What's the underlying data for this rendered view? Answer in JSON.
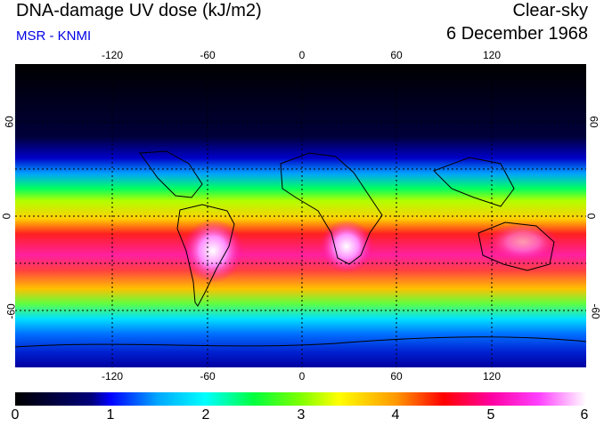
{
  "header": {
    "title": "DNA-damage UV dose (kJ/m2)",
    "source": "MSR - KNMI",
    "condition": "Clear-sky",
    "date": "6 December 1968"
  },
  "map": {
    "lon_ticks": [
      "-120",
      "-60",
      "0",
      "60",
      "120"
    ],
    "lat_ticks": [
      "60",
      "0",
      "-60"
    ]
  },
  "colorbar": {
    "labels": [
      "0",
      "1",
      "2",
      "3",
      "4",
      "5",
      "6"
    ],
    "stops": [
      {
        "v": 0,
        "c": "#000000"
      },
      {
        "v": 0.8,
        "c": "#00007a"
      },
      {
        "v": 1.0,
        "c": "#0000ff"
      },
      {
        "v": 1.5,
        "c": "#00a8ff"
      },
      {
        "v": 2.0,
        "c": "#00ffff"
      },
      {
        "v": 2.5,
        "c": "#00ff40"
      },
      {
        "v": 3.0,
        "c": "#7fff00"
      },
      {
        "v": 3.4,
        "c": "#ffff00"
      },
      {
        "v": 4.0,
        "c": "#ff9900"
      },
      {
        "v": 4.5,
        "c": "#ff0000"
      },
      {
        "v": 5.0,
        "c": "#ff00a0"
      },
      {
        "v": 5.5,
        "c": "#ff40ff"
      },
      {
        "v": 6.0,
        "c": "#ffffff"
      }
    ]
  }
}
